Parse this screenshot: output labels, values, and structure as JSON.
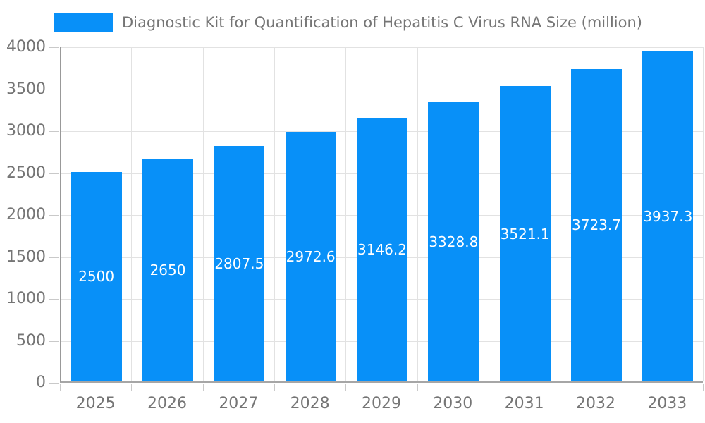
{
  "chart_data": {
    "type": "bar",
    "title": "Diagnostic Kit for Quantification of Hepatitis C Virus RNA Size (million)",
    "categories": [
      "2025",
      "2026",
      "2027",
      "2028",
      "2029",
      "2030",
      "2031",
      "2032",
      "2033"
    ],
    "values": [
      2500,
      2650,
      2807.5,
      2972.6,
      3146.2,
      3328.8,
      3521.1,
      3723.7,
      3937.3
    ],
    "value_labels": [
      "2500",
      "2650",
      "2807.5",
      "2972.6",
      "3146.2",
      "3328.8",
      "3521.1",
      "3723.7",
      "3937.3"
    ],
    "xlabel": "",
    "ylabel": "",
    "ylim": [
      0,
      4000
    ],
    "y_ticks": [
      0,
      500,
      1000,
      1500,
      2000,
      2500,
      3000,
      3500,
      4000
    ],
    "grid": true,
    "legend_position": "top-left",
    "colors": {
      "bar": "#0890f8",
      "bar_value_text": "#ffffff",
      "axis_text": "#757575",
      "gridline": "#e2e2e2",
      "tick": "#c9c9c9",
      "axis_line": "#9e9e9e",
      "background": "#ffffff"
    }
  }
}
